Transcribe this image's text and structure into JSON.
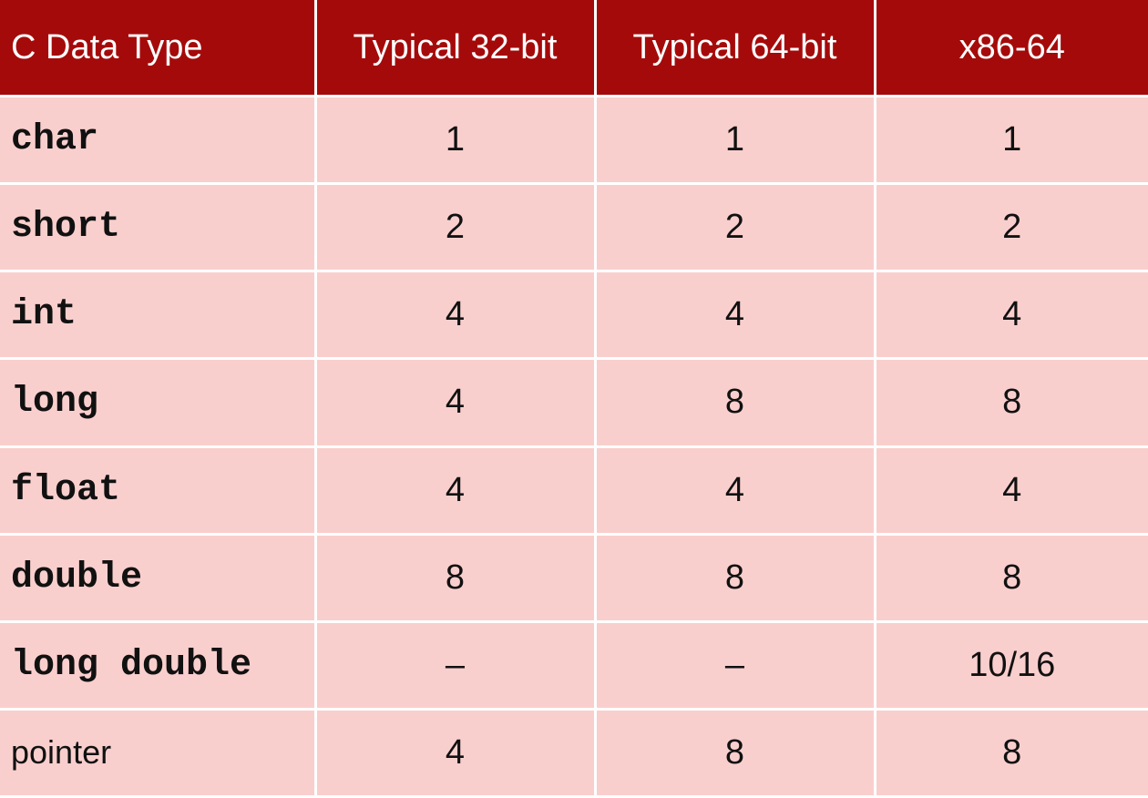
{
  "header": [
    "C Data Type",
    "Typical 32-bit",
    "Typical 64-bit",
    "x86-64"
  ],
  "rows": [
    {
      "type": "char",
      "mono": true,
      "values": [
        "1",
        "1",
        "1"
      ]
    },
    {
      "type": "short",
      "mono": true,
      "values": [
        "2",
        "2",
        "2"
      ]
    },
    {
      "type": "int",
      "mono": true,
      "values": [
        "4",
        "4",
        "4"
      ]
    },
    {
      "type": "long",
      "mono": true,
      "values": [
        "4",
        "8",
        "8"
      ]
    },
    {
      "type": "float",
      "mono": true,
      "values": [
        "4",
        "4",
        "4"
      ]
    },
    {
      "type": "double",
      "mono": true,
      "values": [
        "8",
        "8",
        "8"
      ]
    },
    {
      "type": "long double",
      "mono": true,
      "values": [
        "–",
        "–",
        "10/16"
      ]
    },
    {
      "type": "pointer",
      "mono": false,
      "values": [
        "4",
        "8",
        "8"
      ]
    }
  ],
  "colors": {
    "header": "#a50a0a",
    "body": "#f9cfcd"
  }
}
